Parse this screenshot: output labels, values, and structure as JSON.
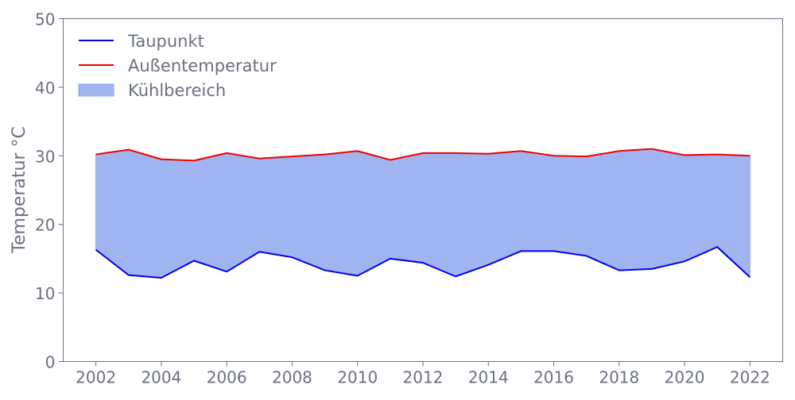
{
  "chart_data": {
    "type": "line",
    "title": "",
    "xlabel": "",
    "ylabel": "Temperatur °C",
    "xlim": [
      2001,
      2023
    ],
    "ylim": [
      0,
      50
    ],
    "x": [
      2002,
      2003,
      2004,
      2005,
      2006,
      2007,
      2008,
      2009,
      2010,
      2011,
      2012,
      2013,
      2014,
      2015,
      2016,
      2017,
      2018,
      2019,
      2020,
      2021,
      2022
    ],
    "xticks": [
      "2002",
      "2004",
      "2006",
      "2008",
      "2010",
      "2012",
      "2014",
      "2016",
      "2018",
      "2020",
      "2022"
    ],
    "yticks": [
      "0",
      "10",
      "20",
      "30",
      "40",
      "50"
    ],
    "series": [
      {
        "name": "Taupunkt",
        "color": "#0000ee",
        "values": [
          16.3,
          12.6,
          12.2,
          14.7,
          13.1,
          16.0,
          15.2,
          13.3,
          12.5,
          15.0,
          14.4,
          12.4,
          14.1,
          16.1,
          16.1,
          15.4,
          13.3,
          13.5,
          14.6,
          16.7,
          12.3
        ]
      },
      {
        "name": "Außentemperatur",
        "color": "#ee0000",
        "values": [
          30.2,
          30.9,
          29.5,
          29.3,
          30.4,
          29.6,
          29.9,
          30.2,
          30.7,
          29.4,
          30.4,
          30.4,
          30.3,
          30.7,
          30.0,
          29.9,
          30.7,
          31.0,
          30.1,
          30.2,
          30.0
        ]
      }
    ],
    "fill": {
      "name": "Kühlbereich",
      "color": "#a0b4ef",
      "between": [
        "Taupunkt",
        "Außentemperatur"
      ]
    },
    "legend": "top-left",
    "grid": false
  }
}
